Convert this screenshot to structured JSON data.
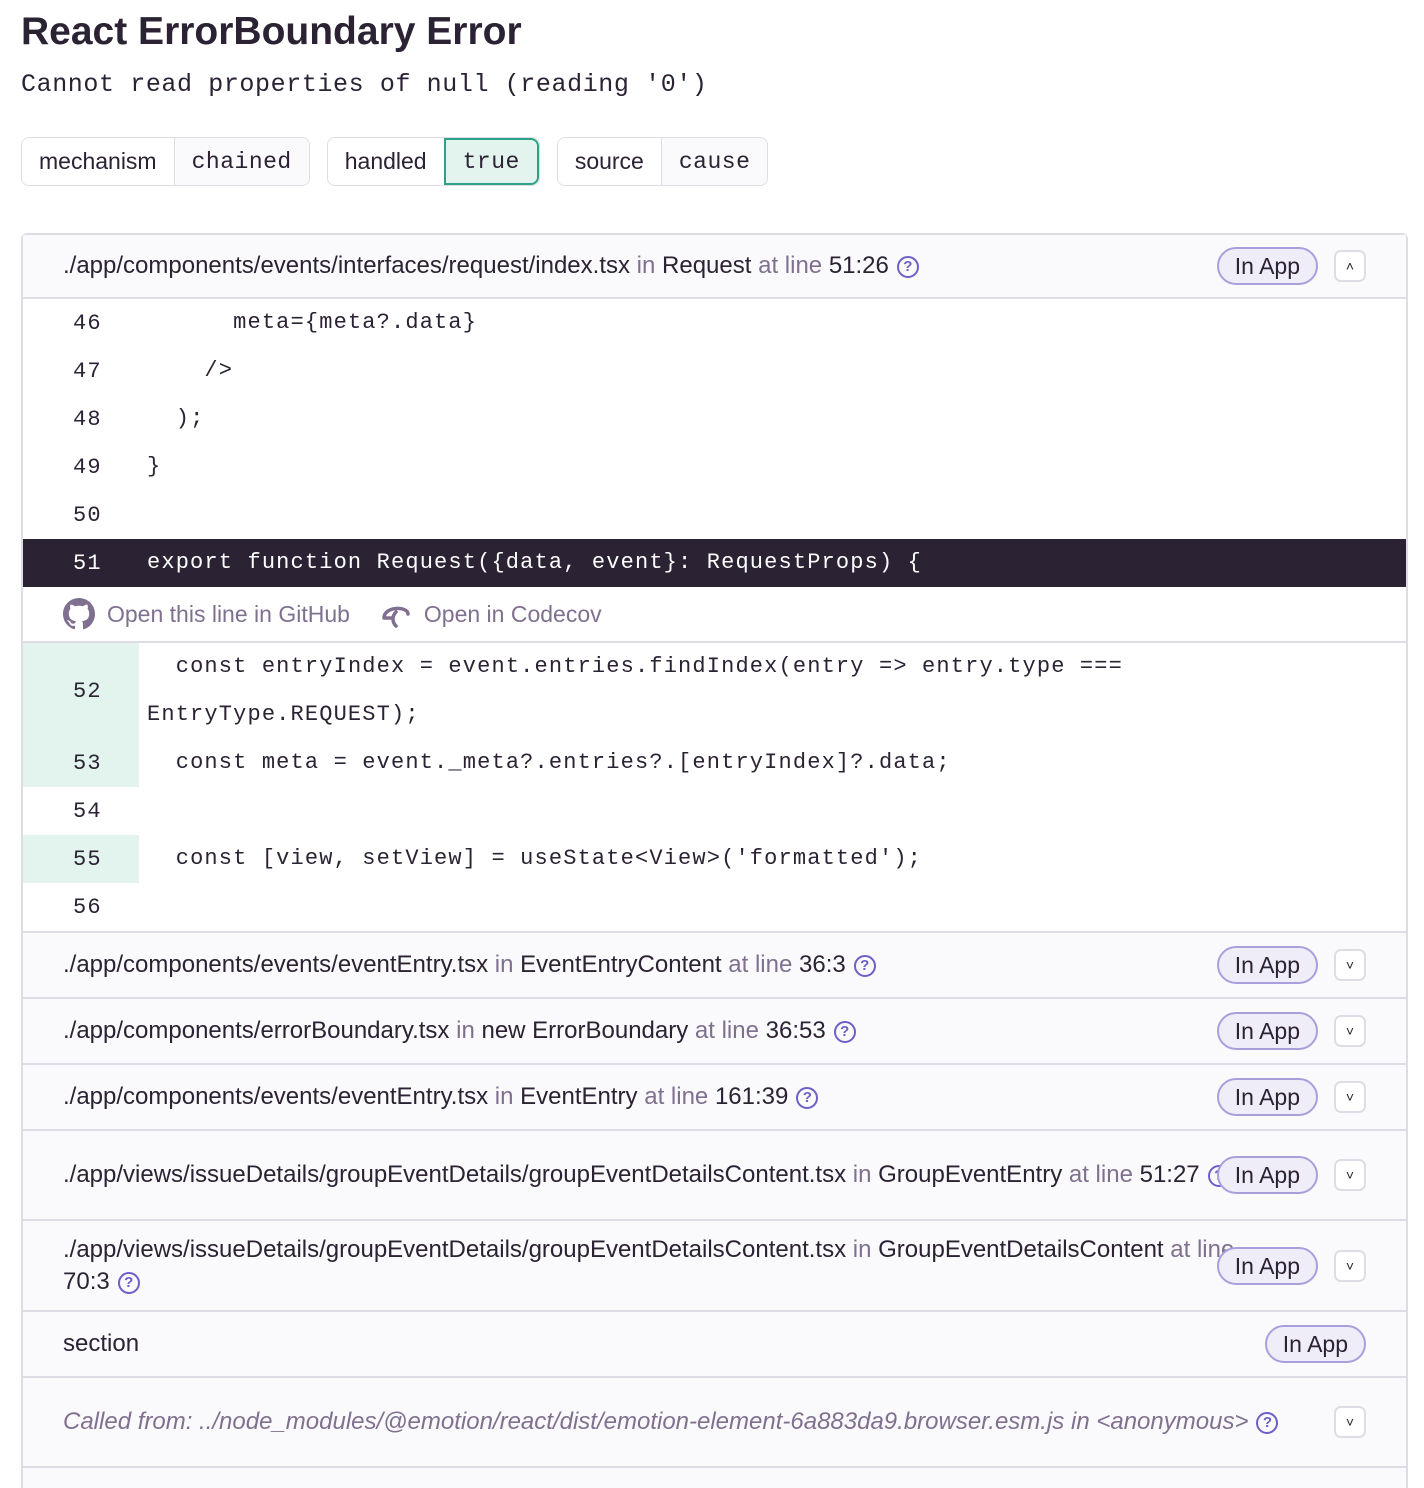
{
  "title": "React ErrorBoundary Error",
  "message": "Cannot read properties of null (reading '0')",
  "tags": [
    {
      "key": "mechanism",
      "value": "chained"
    },
    {
      "key": "handled",
      "value": "true"
    },
    {
      "key": "source",
      "value": "cause"
    }
  ],
  "frames": {
    "expanded": {
      "file": "./app/components/events/interfaces/request/index.tsx",
      "in": "in",
      "function": "Request",
      "at_line": "at line",
      "line": "51:26",
      "badge": "In App",
      "lines": [
        {
          "n": "46",
          "code": "      meta={meta?.data}",
          "covered": false
        },
        {
          "n": "47",
          "code": "    />",
          "covered": false
        },
        {
          "n": "48",
          "code": "  );",
          "covered": false
        },
        {
          "n": "49",
          "code": "}",
          "covered": false
        },
        {
          "n": "50",
          "code": "",
          "covered": false
        },
        {
          "n": "51",
          "code": "export function Request({data, event}: RequestProps) {",
          "active": true
        }
      ],
      "links": {
        "github": "Open this line in GitHub",
        "codecov": "Open in Codecov"
      },
      "after": [
        {
          "n": "52",
          "code": "  const entryIndex = event.entries.findIndex(entry => entry.type === EntryType.REQUEST);",
          "covered": true
        },
        {
          "n": "53",
          "code": "  const meta = event._meta?.entries?.[entryIndex]?.data;",
          "covered": true
        },
        {
          "n": "54",
          "code": "",
          "covered": false
        },
        {
          "n": "55",
          "code": "  const [view, setView] = useState<View>('formatted');",
          "covered": true
        },
        {
          "n": "56",
          "code": "",
          "covered": false
        }
      ]
    },
    "collapsed": [
      {
        "file": "./app/components/events/eventEntry.tsx",
        "in": "in",
        "function": "EventEntryContent",
        "at_line": "at line",
        "line": "36:3",
        "badge": "In App"
      },
      {
        "file": "./app/components/errorBoundary.tsx",
        "in": "in",
        "function": "new ErrorBoundary",
        "at_line": "at line",
        "line": "36:53",
        "badge": "In App"
      },
      {
        "file": "./app/components/events/eventEntry.tsx",
        "in": "in",
        "function": "EventEntry",
        "at_line": "at line",
        "line": "161:39",
        "badge": "In App"
      },
      {
        "file": "./app/views/issueDetails/groupEventDetails/groupEventDetailsContent.tsx",
        "in": "in",
        "function": "GroupEventEntry",
        "at_line": "at line",
        "line": "51:27",
        "badge": "In App"
      },
      {
        "file": "./app/views/issueDetails/groupEventDetails/groupEventDetailsContent.tsx",
        "in": "in",
        "function": "GroupEventDetailsContent",
        "at_line": "at line",
        "line": "70:3",
        "badge": "In App"
      }
    ],
    "section": {
      "label": "section",
      "badge": "In App"
    },
    "called_from": {
      "prefix": "Called from:",
      "file": "../node_modules/@emotion/react/dist/emotion-element-6a883da9.browser.esm.js",
      "in": "in",
      "function": "<anonymous>"
    }
  }
}
